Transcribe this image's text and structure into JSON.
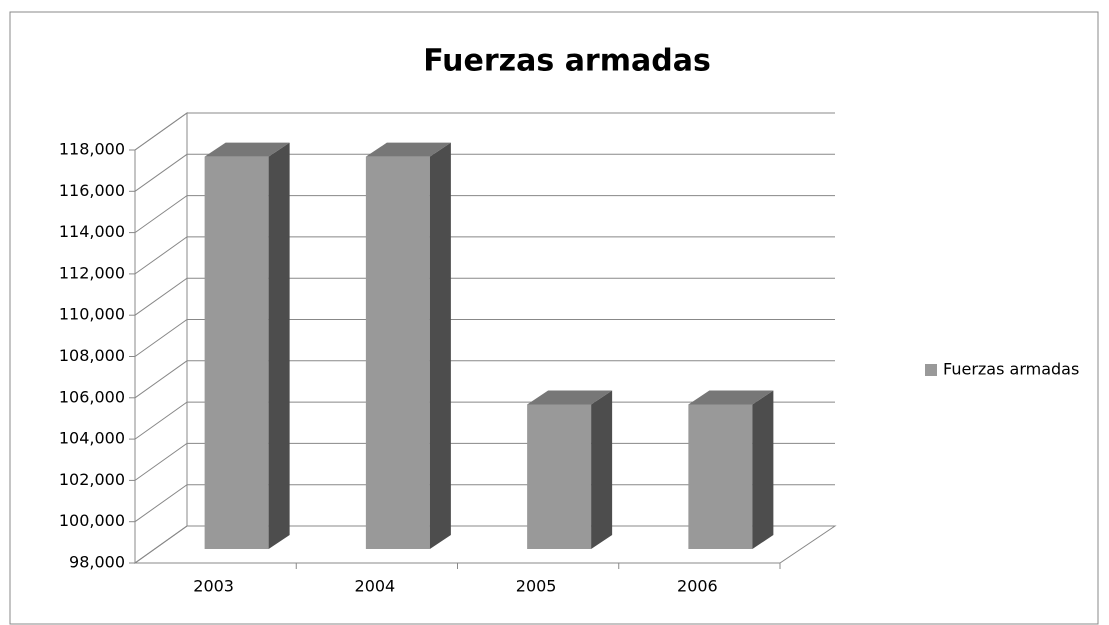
{
  "chart_data": {
    "type": "bar",
    "title": "Fuerzas armadas",
    "categories": [
      "2003",
      "2004",
      "2005",
      "2006"
    ],
    "series": [
      {
        "name": "Fuerzas armadas",
        "color": "#999999",
        "values": [
          117000,
          117000,
          105000,
          105000
        ]
      }
    ],
    "ylim": [
      98000,
      118000
    ],
    "yticks": [
      {
        "value": 98000,
        "label": "98,000"
      },
      {
        "value": 100000,
        "label": "100,000"
      },
      {
        "value": 102000,
        "label": "102,000"
      },
      {
        "value": 104000,
        "label": "104,000"
      },
      {
        "value": 106000,
        "label": "106,000"
      },
      {
        "value": 108000,
        "label": "108,000"
      },
      {
        "value": 110000,
        "label": "110,000"
      },
      {
        "value": 112000,
        "label": "112,000"
      },
      {
        "value": 114000,
        "label": "114,000"
      },
      {
        "value": 116000,
        "label": "116,000"
      },
      {
        "value": 118000,
        "label": "118,000"
      }
    ],
    "grid": true,
    "legend": "right"
  }
}
